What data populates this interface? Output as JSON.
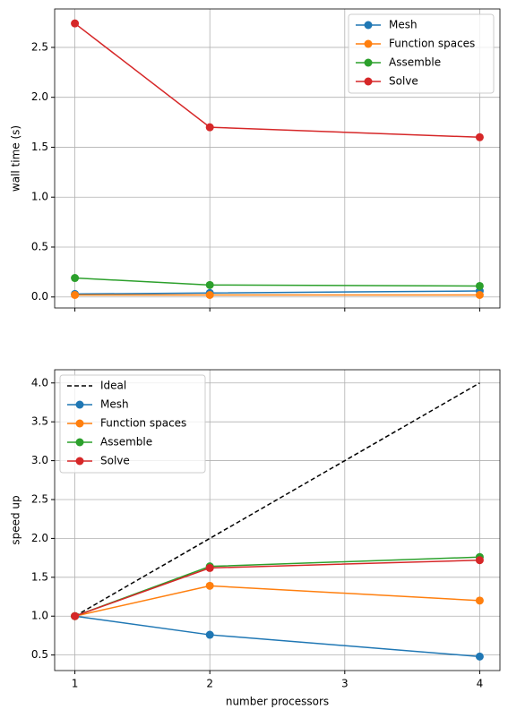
{
  "chart_data": [
    {
      "type": "line",
      "ylabel": "wall time (s)",
      "x": [
        1,
        2,
        4
      ],
      "xlim": [
        0.85,
        4.15
      ],
      "xticks": [
        1,
        2,
        3,
        4
      ],
      "show_xtick_labels": false,
      "ylim": [
        -0.11,
        2.885
      ],
      "yticks": [
        {
          "value": 0,
          "label": "0.0"
        },
        0.5,
        {
          "value": 1,
          "label": "1.0"
        },
        1.5,
        {
          "value": 2,
          "label": "2.0"
        },
        2.5
      ],
      "grid": true,
      "legend": "upper-right",
      "series": [
        {
          "name": "Mesh",
          "color": "#1f77b4",
          "marker": true,
          "values": [
            0.03,
            0.04,
            0.06
          ]
        },
        {
          "name": "Function spaces",
          "color": "#ff7f0e",
          "marker": true,
          "values": [
            0.02,
            0.02,
            0.02
          ]
        },
        {
          "name": "Assemble",
          "color": "#2ca02c",
          "marker": true,
          "values": [
            0.19,
            0.12,
            0.11
          ]
        },
        {
          "name": "Solve",
          "color": "#d62728",
          "marker": true,
          "values": [
            2.74,
            1.7,
            1.6
          ]
        }
      ]
    },
    {
      "type": "line",
      "ylabel": "speed up",
      "xlabel": "number processors",
      "x": [
        1,
        2,
        4
      ],
      "xlim": [
        0.85,
        4.15
      ],
      "xticks": [
        1,
        2,
        3,
        4
      ],
      "show_xtick_labels": true,
      "ylim": [
        0.3,
        4.17
      ],
      "yticks": [
        0.5,
        {
          "value": 1,
          "label": "1.0"
        },
        1.5,
        {
          "value": 2,
          "label": "2.0"
        },
        2.5,
        {
          "value": 3,
          "label": "3.0"
        },
        3.5,
        {
          "value": 4,
          "label": "4.0"
        }
      ],
      "grid": true,
      "legend": "upper-left",
      "series": [
        {
          "name": "Ideal",
          "color": "#000000",
          "dashed": true,
          "marker": false,
          "values": [
            1,
            2,
            4
          ]
        },
        {
          "name": "Mesh",
          "color": "#1f77b4",
          "marker": true,
          "values": [
            1,
            0.76,
            0.48
          ]
        },
        {
          "name": "Function spaces",
          "color": "#ff7f0e",
          "marker": true,
          "values": [
            1,
            1.39,
            1.2
          ]
        },
        {
          "name": "Assemble",
          "color": "#2ca02c",
          "marker": true,
          "values": [
            1,
            1.64,
            1.76
          ]
        },
        {
          "name": "Solve",
          "color": "#d62728",
          "marker": true,
          "values": [
            1,
            1.62,
            1.72
          ]
        }
      ]
    }
  ]
}
